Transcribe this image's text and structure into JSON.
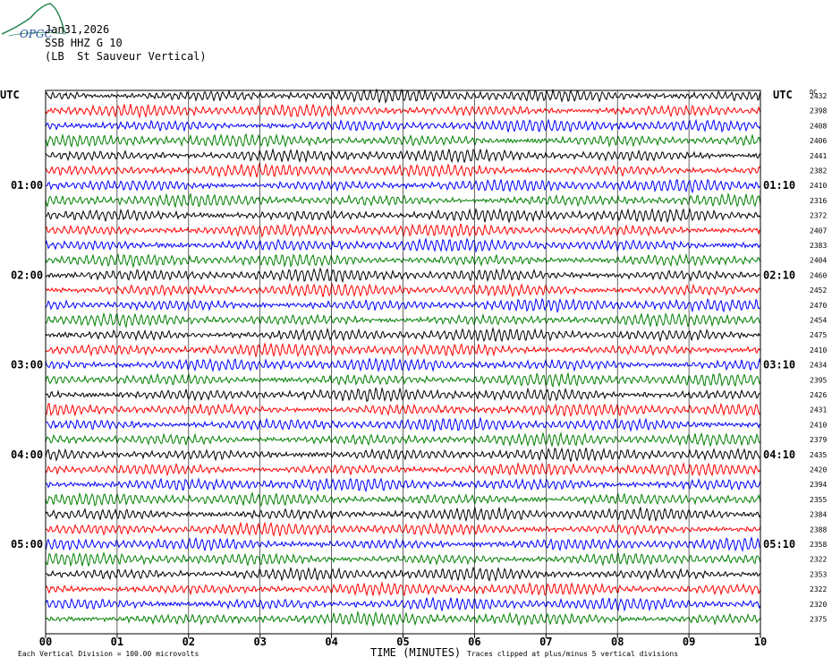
{
  "header": {
    "date": "Jan31,2026",
    "station": "SSB HHZ G 10",
    "location": "(LB  St Sauveur Vertical)",
    "logo_text": "OPGC"
  },
  "chart_data": {
    "type": "line",
    "title": "",
    "left_axis_label": "UTC",
    "right_axis_label": "UTC",
    "dc_label": "DC",
    "xlabel": "TIME (MINUTES)",
    "x_ticks": [
      "00",
      "01",
      "02",
      "03",
      "04",
      "05",
      "06",
      "07",
      "08",
      "09",
      "10"
    ],
    "xlim": [
      0,
      10
    ],
    "grid": true,
    "trace_minutes": 10,
    "trace_colors": [
      "#000000",
      "#ff0000",
      "#0000ff",
      "#008000"
    ],
    "left_time_labels": [
      {
        "trace": 6,
        "label": "01:00"
      },
      {
        "trace": 12,
        "label": "02:00"
      },
      {
        "trace": 18,
        "label": "03:00"
      },
      {
        "trace": 24,
        "label": "04:00"
      },
      {
        "trace": 30,
        "label": "05:00"
      }
    ],
    "right_time_labels": [
      {
        "trace": 6,
        "label": "01:10"
      },
      {
        "trace": 12,
        "label": "02:10"
      },
      {
        "trace": 18,
        "label": "03:10"
      },
      {
        "trace": 24,
        "label": "04:10"
      },
      {
        "trace": 30,
        "label": "05:10"
      }
    ],
    "dc_offsets": [
      2432,
      2398,
      2408,
      2406,
      2441,
      2382,
      2410,
      2316,
      2372,
      2407,
      2383,
      2404,
      2460,
      2452,
      2470,
      2454,
      2475,
      2410,
      2434,
      2395,
      2426,
      2431,
      2410,
      2379,
      2435,
      2420,
      2394,
      2355,
      2384,
      2388,
      2358,
      2322,
      2353,
      2322,
      2320,
      2375
    ],
    "footnotes": {
      "left": "Each Vertical Division =  100.00 microvolts",
      "right": "Traces clipped at plus/minus 5 vertical divisions"
    }
  }
}
